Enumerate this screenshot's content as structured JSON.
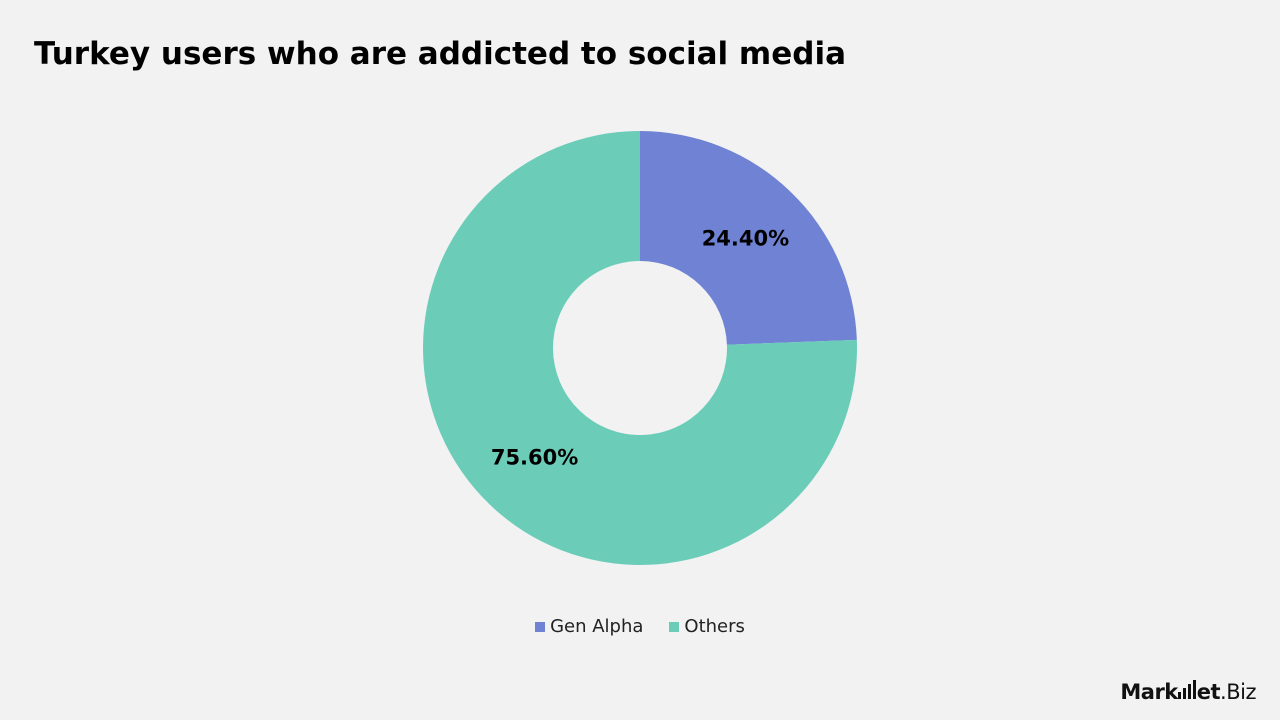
{
  "title": "Turkey users who are addicted to social media",
  "chart_data": {
    "type": "pie",
    "donut": true,
    "title": "Turkey users who are addicted to social media",
    "categories": [
      "Gen Alpha",
      "Others"
    ],
    "values": [
      24.4,
      75.6
    ],
    "value_labels": [
      "24.40%",
      "75.60%"
    ],
    "colors": [
      "#6f82d4",
      "#6bcdb8"
    ],
    "legend_position": "bottom"
  },
  "legend": [
    {
      "label": "Gen Alpha",
      "color": "#6f82d4"
    },
    {
      "label": "Others",
      "color": "#6bcdb8"
    }
  ],
  "brand": {
    "name_left": "Mark",
    "name_mid": "et",
    "name_right": ".Biz"
  }
}
